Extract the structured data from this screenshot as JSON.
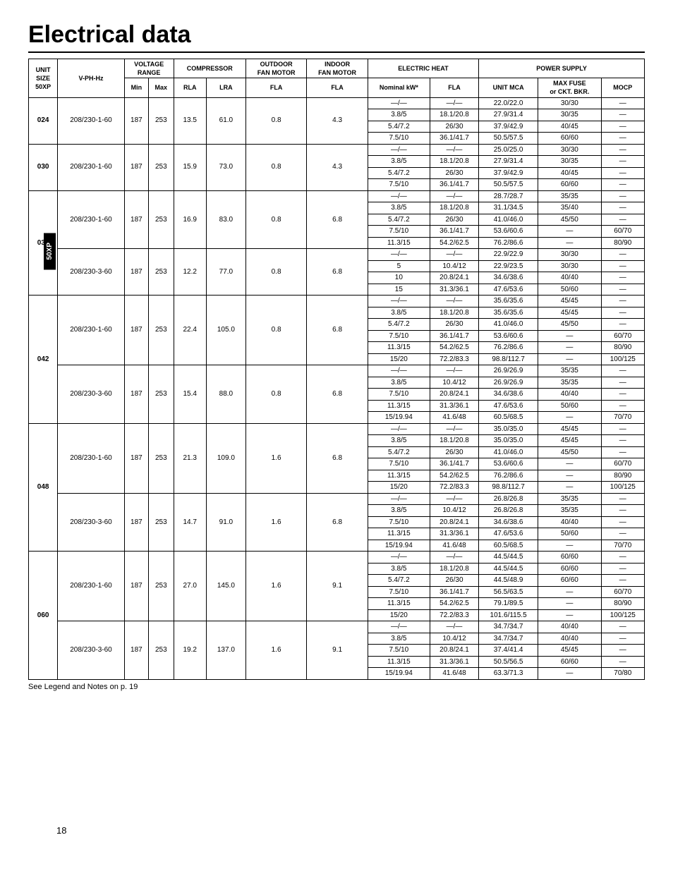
{
  "title": "Electrical data",
  "side_tab": "50XP",
  "footnote": "See Legend and Notes on p. 19",
  "page_number": "18",
  "headers": {
    "unit_size": "UNIT\nSIZE\n50XP",
    "vphz": "V-PH-Hz",
    "voltage_range": "VOLTAGE\nRANGE",
    "min": "Min",
    "max": "Max",
    "compressor": "COMPRESSOR",
    "rla": "RLA",
    "lra": "LRA",
    "outdoor_fan": "OUTDOOR\nFAN MOTOR",
    "indoor_fan": "INDOOR\nFAN MOTOR",
    "fla": "FLA",
    "electric_heat": "ELECTRIC HEAT",
    "nominal_kw": "Nominal kW*",
    "power_supply": "POWER SUPPLY",
    "unit_mca": "UNIT MCA",
    "max_fuse": "MAX FUSE\nor CKT. BKR.",
    "mocp": "MOCP"
  },
  "rows": [
    {
      "unit_size": "024",
      "blocks": [
        {
          "vphz": "208/230-1-60",
          "min": "187",
          "max": "253",
          "rla": "13.5",
          "lra": "61.0",
          "ofla": "0.8",
          "ifla": "4.3",
          "heat": [
            {
              "kw": "—/—",
              "fla": "—/—",
              "mca": "22.0/22.0",
              "fuse": "30/30",
              "mocp": "—"
            },
            {
              "kw": "3.8/5",
              "fla": "18.1/20.8",
              "mca": "27.9/31.4",
              "fuse": "30/35",
              "mocp": "—"
            },
            {
              "kw": "5.4/7.2",
              "fla": "26/30",
              "mca": "37.9/42.9",
              "fuse": "40/45",
              "mocp": "—"
            },
            {
              "kw": "7.5/10",
              "fla": "36.1/41.7",
              "mca": "50.5/57.5",
              "fuse": "60/60",
              "mocp": "—"
            }
          ]
        }
      ]
    },
    {
      "unit_size": "030",
      "blocks": [
        {
          "vphz": "208/230-1-60",
          "min": "187",
          "max": "253",
          "rla": "15.9",
          "lra": "73.0",
          "ofla": "0.8",
          "ifla": "4.3",
          "heat": [
            {
              "kw": "—/—",
              "fla": "—/—",
              "mca": "25.0/25.0",
              "fuse": "30/30",
              "mocp": "—"
            },
            {
              "kw": "3.8/5",
              "fla": "18.1/20.8",
              "mca": "27.9/31.4",
              "fuse": "30/35",
              "mocp": "—"
            },
            {
              "kw": "5.4/7.2",
              "fla": "26/30",
              "mca": "37.9/42.9",
              "fuse": "40/45",
              "mocp": "—"
            },
            {
              "kw": "7.5/10",
              "fla": "36.1/41.7",
              "mca": "50.5/57.5",
              "fuse": "60/60",
              "mocp": "—"
            }
          ]
        }
      ]
    },
    {
      "unit_size": "036",
      "blocks": [
        {
          "vphz": "208/230-1-60",
          "min": "187",
          "max": "253",
          "rla": "16.9",
          "lra": "83.0",
          "ofla": "0.8",
          "ifla": "6.8",
          "heat": [
            {
              "kw": "—/—",
              "fla": "—/—",
              "mca": "28.7/28.7",
              "fuse": "35/35",
              "mocp": "—"
            },
            {
              "kw": "3.8/5",
              "fla": "18.1/20.8",
              "mca": "31.1/34.5",
              "fuse": "35/40",
              "mocp": "—"
            },
            {
              "kw": "5.4/7.2",
              "fla": "26/30",
              "mca": "41.0/46.0",
              "fuse": "45/50",
              "mocp": "—"
            },
            {
              "kw": "7.5/10",
              "fla": "36.1/41.7",
              "mca": "53.6/60.6",
              "fuse": "—",
              "mocp": "60/70"
            },
            {
              "kw": "11.3/15",
              "fla": "54.2/62.5",
              "mca": "76.2/86.6",
              "fuse": "—",
              "mocp": "80/90"
            }
          ]
        },
        {
          "vphz": "208/230-3-60",
          "min": "187",
          "max": "253",
          "rla": "12.2",
          "lra": "77.0",
          "ofla": "0.8",
          "ifla": "6.8",
          "heat": [
            {
              "kw": "—/—",
              "fla": "—/—",
              "mca": "22.9/22.9",
              "fuse": "30/30",
              "mocp": "—"
            },
            {
              "kw": "5",
              "fla": "10.4/12",
              "mca": "22.9/23.5",
              "fuse": "30/30",
              "mocp": "—"
            },
            {
              "kw": "10",
              "fla": "20.8/24.1",
              "mca": "34.6/38.6",
              "fuse": "40/40",
              "mocp": "—"
            },
            {
              "kw": "15",
              "fla": "31.3/36.1",
              "mca": "47.6/53.6",
              "fuse": "50/60",
              "mocp": "—"
            }
          ]
        }
      ]
    },
    {
      "unit_size": "042",
      "blocks": [
        {
          "vphz": "208/230-1-60",
          "min": "187",
          "max": "253",
          "rla": "22.4",
          "lra": "105.0",
          "ofla": "0.8",
          "ifla": "6.8",
          "heat": [
            {
              "kw": "—/—",
              "fla": "—/—",
              "mca": "35.6/35.6",
              "fuse": "45/45",
              "mocp": "—"
            },
            {
              "kw": "3.8/5",
              "fla": "18.1/20.8",
              "mca": "35.6/35.6",
              "fuse": "45/45",
              "mocp": "—"
            },
            {
              "kw": "5.4/7.2",
              "fla": "26/30",
              "mca": "41.0/46.0",
              "fuse": "45/50",
              "mocp": "—"
            },
            {
              "kw": "7.5/10",
              "fla": "36.1/41.7",
              "mca": "53.6/60.6",
              "fuse": "—",
              "mocp": "60/70"
            },
            {
              "kw": "11.3/15",
              "fla": "54.2/62.5",
              "mca": "76.2/86.6",
              "fuse": "—",
              "mocp": "80/90"
            },
            {
              "kw": "15/20",
              "fla": "72.2/83.3",
              "mca": "98.8/112.7",
              "fuse": "—",
              "mocp": "100/125"
            }
          ]
        },
        {
          "vphz": "208/230-3-60",
          "min": "187",
          "max": "253",
          "rla": "15.4",
          "lra": "88.0",
          "ofla": "0.8",
          "ifla": "6.8",
          "heat": [
            {
              "kw": "—/—",
              "fla": "—/—",
              "mca": "26.9/26.9",
              "fuse": "35/35",
              "mocp": "—"
            },
            {
              "kw": "3.8/5",
              "fla": "10.4/12",
              "mca": "26.9/26.9",
              "fuse": "35/35",
              "mocp": "—"
            },
            {
              "kw": "7.5/10",
              "fla": "20.8/24.1",
              "mca": "34.6/38.6",
              "fuse": "40/40",
              "mocp": "—"
            },
            {
              "kw": "11.3/15",
              "fla": "31.3/36.1",
              "mca": "47.6/53.6",
              "fuse": "50/60",
              "mocp": "—"
            },
            {
              "kw": "15/19.94",
              "fla": "41.6/48",
              "mca": "60.5/68.5",
              "fuse": "—",
              "mocp": "70/70"
            }
          ]
        }
      ]
    },
    {
      "unit_size": "048",
      "blocks": [
        {
          "vphz": "208/230-1-60",
          "min": "187",
          "max": "253",
          "rla": "21.3",
          "lra": "109.0",
          "ofla": "1.6",
          "ifla": "6.8",
          "heat": [
            {
              "kw": "—/—",
              "fla": "—/—",
              "mca": "35.0/35.0",
              "fuse": "45/45",
              "mocp": "—"
            },
            {
              "kw": "3.8/5",
              "fla": "18.1/20.8",
              "mca": "35.0/35.0",
              "fuse": "45/45",
              "mocp": "—"
            },
            {
              "kw": "5.4/7.2",
              "fla": "26/30",
              "mca": "41.0/46.0",
              "fuse": "45/50",
              "mocp": "—"
            },
            {
              "kw": "7.5/10",
              "fla": "36.1/41.7",
              "mca": "53.6/60.6",
              "fuse": "—",
              "mocp": "60/70"
            },
            {
              "kw": "11.3/15",
              "fla": "54.2/62.5",
              "mca": "76.2/86.6",
              "fuse": "—",
              "mocp": "80/90"
            },
            {
              "kw": "15/20",
              "fla": "72.2/83.3",
              "mca": "98.8/112.7",
              "fuse": "—",
              "mocp": "100/125"
            }
          ]
        },
        {
          "vphz": "208/230-3-60",
          "min": "187",
          "max": "253",
          "rla": "14.7",
          "lra": "91.0",
          "ofla": "1.6",
          "ifla": "6.8",
          "heat": [
            {
              "kw": "—/—",
              "fla": "—/—",
              "mca": "26.8/26.8",
              "fuse": "35/35",
              "mocp": "—"
            },
            {
              "kw": "3.8/5",
              "fla": "10.4/12",
              "mca": "26.8/26.8",
              "fuse": "35/35",
              "mocp": "—"
            },
            {
              "kw": "7.5/10",
              "fla": "20.8/24.1",
              "mca": "34.6/38.6",
              "fuse": "40/40",
              "mocp": "—"
            },
            {
              "kw": "11.3/15",
              "fla": "31.3/36.1",
              "mca": "47.6/53.6",
              "fuse": "50/60",
              "mocp": "—"
            },
            {
              "kw": "15/19.94",
              "fla": "41.6/48",
              "mca": "60.5/68.5",
              "fuse": "—",
              "mocp": "70/70"
            }
          ]
        }
      ]
    },
    {
      "unit_size": "060",
      "blocks": [
        {
          "vphz": "208/230-1-60",
          "min": "187",
          "max": "253",
          "rla": "27.0",
          "lra": "145.0",
          "ofla": "1.6",
          "ifla": "9.1",
          "heat": [
            {
              "kw": "—/—",
              "fla": "—/—",
              "mca": "44.5/44.5",
              "fuse": "60/60",
              "mocp": "—"
            },
            {
              "kw": "3.8/5",
              "fla": "18.1/20.8",
              "mca": "44.5/44.5",
              "fuse": "60/60",
              "mocp": "—"
            },
            {
              "kw": "5.4/7.2",
              "fla": "26/30",
              "mca": "44.5/48.9",
              "fuse": "60/60",
              "mocp": "—"
            },
            {
              "kw": "7.5/10",
              "fla": "36.1/41.7",
              "mca": "56.5/63.5",
              "fuse": "—",
              "mocp": "60/70"
            },
            {
              "kw": "11.3/15",
              "fla": "54.2/62.5",
              "mca": "79.1/89.5",
              "fuse": "—",
              "mocp": "80/90"
            },
            {
              "kw": "15/20",
              "fla": "72.2/83.3",
              "mca": "101.6/115.5",
              "fuse": "—",
              "mocp": "100/125"
            }
          ]
        },
        {
          "vphz": "208/230-3-60",
          "min": "187",
          "max": "253",
          "rla": "19.2",
          "lra": "137.0",
          "ofla": "1.6",
          "ifla": "9.1",
          "heat": [
            {
              "kw": "—/—",
              "fla": "—/—",
              "mca": "34.7/34.7",
              "fuse": "40/40",
              "mocp": "—"
            },
            {
              "kw": "3.8/5",
              "fla": "10.4/12",
              "mca": "34.7/34.7",
              "fuse": "40/40",
              "mocp": "—"
            },
            {
              "kw": "7.5/10",
              "fla": "20.8/24.1",
              "mca": "37.4/41.4",
              "fuse": "45/45",
              "mocp": "—"
            },
            {
              "kw": "11.3/15",
              "fla": "31.3/36.1",
              "mca": "50.5/56.5",
              "fuse": "60/60",
              "mocp": "—"
            },
            {
              "kw": "15/19.94",
              "fla": "41.6/48",
              "mca": "63.3/71.3",
              "fuse": "—",
              "mocp": "70/80"
            }
          ]
        }
      ]
    }
  ]
}
